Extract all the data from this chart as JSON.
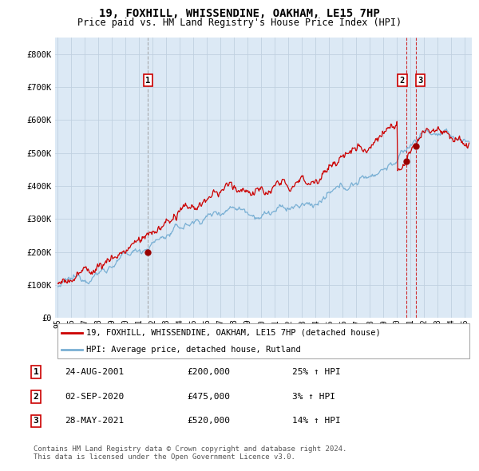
{
  "title": "19, FOXHILL, WHISSENDINE, OAKHAM, LE15 7HP",
  "subtitle": "Price paid vs. HM Land Registry's House Price Index (HPI)",
  "title_fontsize": 10,
  "subtitle_fontsize": 8.5,
  "xlim": [
    1994.8,
    2025.5
  ],
  "ylim": [
    0,
    850000
  ],
  "yticks": [
    0,
    100000,
    200000,
    300000,
    400000,
    500000,
    600000,
    700000,
    800000
  ],
  "ytick_labels": [
    "£0",
    "£100K",
    "£200K",
    "£300K",
    "£400K",
    "£500K",
    "£600K",
    "£700K",
    "£800K"
  ],
  "xtick_years": [
    1995,
    1996,
    1997,
    1998,
    1999,
    2000,
    2001,
    2002,
    2003,
    2004,
    2005,
    2006,
    2007,
    2008,
    2009,
    2010,
    2011,
    2012,
    2013,
    2014,
    2015,
    2016,
    2017,
    2018,
    2019,
    2020,
    2021,
    2022,
    2023,
    2024,
    2025
  ],
  "xtick_labels_2digit": [
    "95",
    "96",
    "97",
    "98",
    "99",
    "00",
    "01",
    "02",
    "03",
    "04",
    "05",
    "06",
    "07",
    "08",
    "09",
    "10",
    "11",
    "12",
    "13",
    "14",
    "15",
    "16",
    "17",
    "18",
    "19",
    "20",
    "21",
    "22",
    "23",
    "24",
    "25"
  ],
  "property_color": "#cc0000",
  "hpi_color": "#7ab0d4",
  "chart_bg": "#dce9f5",
  "sale1": {
    "year": 2001.65,
    "price": 200000,
    "label": "1"
  },
  "sale2": {
    "year": 2020.67,
    "price": 475000,
    "label": "2"
  },
  "sale3": {
    "year": 2021.41,
    "price": 520000,
    "label": "3"
  },
  "legend_property": "19, FOXHILL, WHISSENDINE, OAKHAM, LE15 7HP (detached house)",
  "legend_hpi": "HPI: Average price, detached house, Rutland",
  "table_entries": [
    {
      "num": "1",
      "date": "24-AUG-2001",
      "price": "£200,000",
      "change": "25% ↑ HPI"
    },
    {
      "num": "2",
      "date": "02-SEP-2020",
      "price": "£475,000",
      "change": "3% ↑ HPI"
    },
    {
      "num": "3",
      "date": "28-MAY-2021",
      "price": "£520,000",
      "change": "14% ↑ HPI"
    }
  ],
  "footer": "Contains HM Land Registry data © Crown copyright and database right 2024.\nThis data is licensed under the Open Government Licence v3.0.",
  "background_color": "#ffffff",
  "grid_color": "#c0d0e0"
}
